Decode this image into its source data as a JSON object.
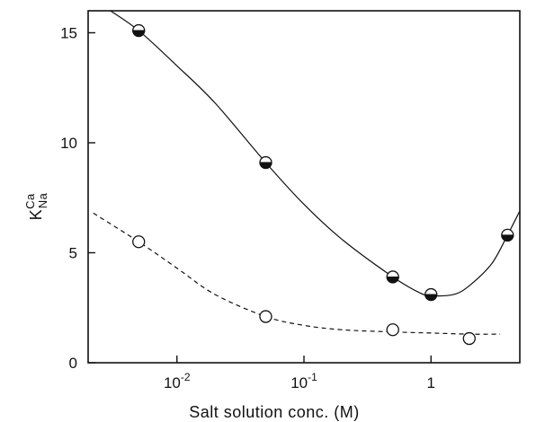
{
  "chart_data": {
    "type": "scatter",
    "xlabel": "Salt solution conc. (M)",
    "ylabel": "K",
    "ylabel_sup": "Ca",
    "ylabel_sub": "Na",
    "x_scale": "log",
    "xlim": [
      0.002,
      5
    ],
    "ylim": [
      0,
      16
    ],
    "x_ticks": [
      {
        "value": 0.01,
        "base": "10",
        "exp": "-2"
      },
      {
        "value": 0.1,
        "base": "10",
        "exp": "-1"
      },
      {
        "value": 1,
        "base": "1",
        "exp": ""
      }
    ],
    "y_ticks": [
      0,
      5,
      10,
      15
    ],
    "grid": false,
    "series": [
      {
        "style": "solid",
        "marker": "half-filled-circle",
        "x": [
          0.005,
          0.05,
          0.5,
          1,
          4
        ],
        "y": [
          15.1,
          9.1,
          3.9,
          3.1,
          5.8
        ],
        "curve_x": [
          0.003,
          0.005,
          0.01,
          0.02,
          0.05,
          0.1,
          0.2,
          0.5,
          0.8,
          1,
          1.5,
          2,
          3,
          4,
          5
        ],
        "curve_y": [
          16.0,
          15.1,
          13.5,
          11.8,
          9.1,
          7.2,
          5.6,
          3.9,
          3.2,
          3.05,
          3.1,
          3.5,
          4.5,
          5.8,
          6.9
        ]
      },
      {
        "style": "dashed",
        "marker": "open-circle",
        "x": [
          0.005,
          0.05,
          0.5,
          2
        ],
        "y": [
          5.5,
          2.1,
          1.5,
          1.1
        ],
        "curve_x": [
          0.0022,
          0.005,
          0.01,
          0.02,
          0.05,
          0.1,
          0.2,
          0.5,
          1,
          2,
          3.5
        ],
        "curve_y": [
          6.8,
          5.5,
          4.3,
          3.1,
          2.1,
          1.7,
          1.5,
          1.4,
          1.35,
          1.3,
          1.3
        ]
      }
    ]
  }
}
